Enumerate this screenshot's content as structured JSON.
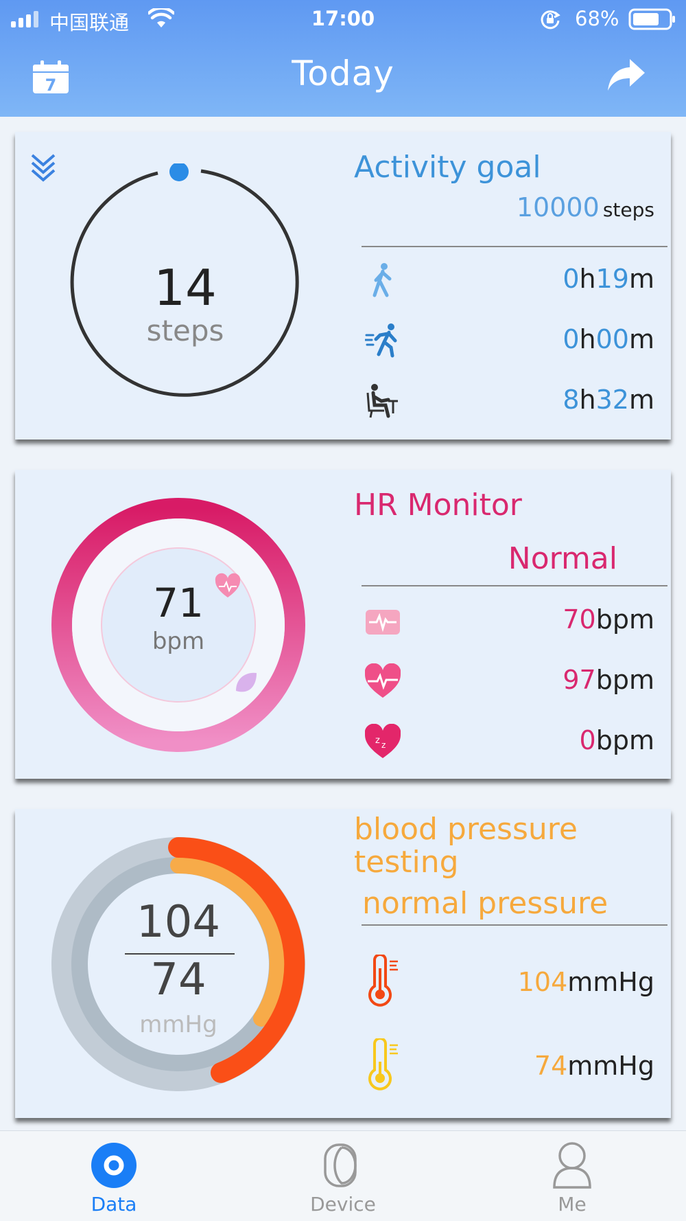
{
  "status_bar": {
    "carrier": "中国联通",
    "time": "17:00",
    "battery": "68%"
  },
  "nav": {
    "title": "Today",
    "calendar_icon": "calendar-icon",
    "calendar_day": "7",
    "share_icon": "share-icon"
  },
  "activity": {
    "title": "Activity goal",
    "steps": "14",
    "steps_unit": "steps",
    "goal_value": "10000",
    "goal_unit": "steps",
    "progress": 0,
    "rows": [
      {
        "icon": "walking-icon",
        "h": "0",
        "m": "19"
      },
      {
        "icon": "running-icon",
        "h": "0",
        "m": "00"
      },
      {
        "icon": "sitting-icon",
        "h": "8",
        "m": "32"
      }
    ],
    "h_unit": "h",
    "m_unit": "m"
  },
  "hr": {
    "title": "HR Monitor",
    "status": "Normal",
    "bpm": "71",
    "bpm_unit": "bpm",
    "rows": [
      {
        "icon": "resting-heart-rate-icon",
        "value": "70"
      },
      {
        "icon": "max-heart-rate-icon",
        "value": "97"
      },
      {
        "icon": "sleep-heart-rate-icon",
        "value": "0"
      }
    ],
    "unit": "bpm"
  },
  "bp": {
    "title_line1": "blood pressure",
    "title_line2": "testing",
    "status": "normal pressure",
    "systolic": "104",
    "diastolic": "74",
    "unit": "mmHg",
    "rows": [
      {
        "icon": "thermometer-high-icon",
        "value": "104"
      },
      {
        "icon": "thermometer-low-icon",
        "value": "74"
      }
    ]
  },
  "tabbar": {
    "tabs": [
      {
        "label": "Data",
        "icon": "data-icon",
        "active": true
      },
      {
        "label": "Device",
        "icon": "device-icon",
        "active": false
      },
      {
        "label": "Me",
        "icon": "person-icon",
        "active": false
      }
    ]
  },
  "colors": {
    "header": "#6aa6f4",
    "blue": "#3d93d9",
    "pink": "#d9286f",
    "orange": "#f6a93d",
    "tab_active": "#1a7ef6"
  }
}
